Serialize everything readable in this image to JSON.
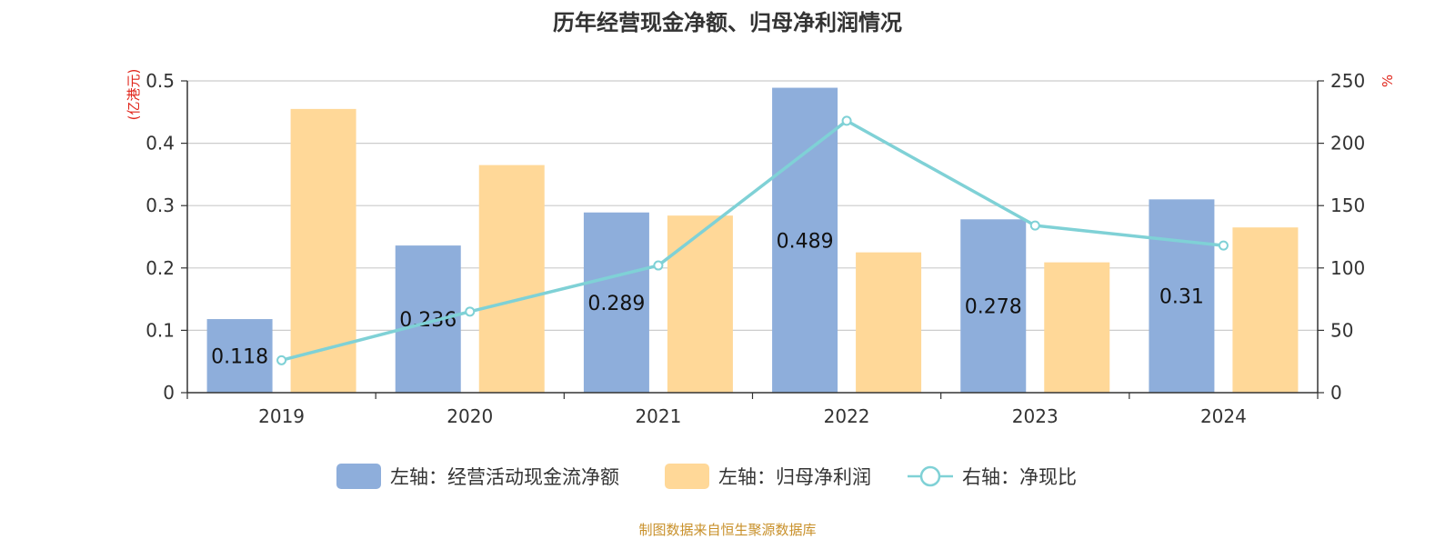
{
  "title": "历年经营现金净额、归母净利润情况",
  "source": "制图数据来自恒生聚源数据库",
  "colors": {
    "cash_flow": "#8eaedb",
    "net_profit": "#ffd898",
    "ratio": "#7fd1d6",
    "unit": "#e0251b",
    "source": "#c8902a",
    "axis": "#333333",
    "grid": "#cccccc"
  },
  "chart_data": {
    "type": "bar",
    "title": "历年经营现金净额、归母净利润情况",
    "categories": [
      "2019",
      "2020",
      "2021",
      "2022",
      "2023",
      "2024"
    ],
    "left_axis": {
      "unit": "(亿港元)",
      "ylim": [
        0,
        0.5
      ],
      "ticks": [
        "0",
        "0.1",
        "0.2",
        "0.3",
        "0.4",
        "0.5"
      ]
    },
    "right_axis": {
      "unit": "%",
      "ylim": [
        0,
        250
      ],
      "ticks": [
        "0",
        "50",
        "100",
        "150",
        "200",
        "250"
      ]
    },
    "grid": true,
    "legend_position": "bottom",
    "series": [
      {
        "name": "左轴：经营活动现金流净额",
        "type": "bar",
        "axis": "left",
        "values": [
          0.118,
          0.236,
          0.289,
          0.489,
          0.278,
          0.31
        ],
        "labels": [
          "0.118",
          "0.236",
          "0.289",
          "0.489",
          "0.278",
          "0.31"
        ]
      },
      {
        "name": "左轴：归母净利润",
        "type": "bar",
        "axis": "left",
        "values": [
          0.455,
          0.365,
          0.284,
          0.225,
          0.209,
          0.265
        ]
      },
      {
        "name": "右轴：净现比",
        "type": "line",
        "axis": "right",
        "values": [
          26,
          65,
          102,
          218,
          134,
          118
        ]
      }
    ]
  }
}
